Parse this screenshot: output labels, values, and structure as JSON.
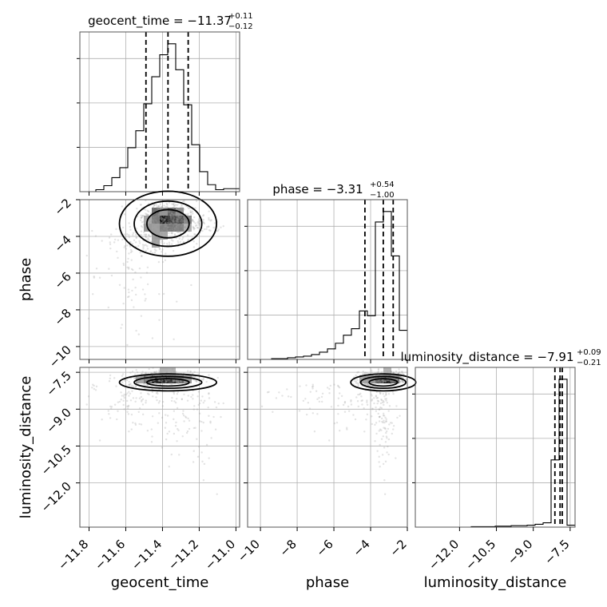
{
  "chart_data": {
    "type": "corner",
    "parameters": [
      {
        "key": "geocent_time",
        "label": "geocent_time",
        "title_prefix": "geocent_time = ",
        "median": "−11.37",
        "plus": "+0.11",
        "minus": "−0.12",
        "range": [
          -11.85,
          -10.98
        ],
        "ticks": [
          -11.8,
          -11.6,
          -11.4,
          -11.2,
          -11.0
        ],
        "tick_labels": [
          "−11.8",
          "−11.6",
          "−11.4",
          "−11.2",
          "−11.0"
        ],
        "quantiles": [
          -11.49,
          -11.37,
          -11.26
        ],
        "hist_edges_start": -11.85,
        "hist_bin_width": 0.0435,
        "hist_counts": [
          0,
          0,
          2,
          6,
          14,
          24,
          44,
          61,
          88,
          115,
          137,
          148,
          122,
          87,
          47,
          20,
          7,
          2,
          3,
          3
        ]
      },
      {
        "key": "phase",
        "label": "phase",
        "title_prefix": "phase = ",
        "median": "−3.31",
        "plus": "+0.54",
        "minus": "−1.00",
        "range": [
          -10.7,
          -2.0
        ],
        "ticks": [
          -10,
          -8,
          -6,
          -4,
          -2
        ],
        "tick_labels": [
          "−10",
          "−8",
          "−6",
          "−4",
          "−2"
        ],
        "quantiles": [
          -4.31,
          -3.31,
          -2.77
        ],
        "hist_edges_start": -10.7,
        "hist_bin_width": 0.435,
        "hist_counts": [
          0,
          0,
          0,
          1,
          1,
          2,
          3,
          4,
          6,
          9,
          13,
          20,
          30,
          38,
          60,
          54,
          170,
          183,
          128,
          36
        ]
      },
      {
        "key": "luminosity_distance",
        "label": "luminosity_distance",
        "title_prefix": "luminosity_distance = ",
        "median": "−7.91",
        "plus": "+0.09",
        "minus": "−0.21",
        "range": [
          -13.8,
          -7.3
        ],
        "ticks": [
          -12.0,
          -10.5,
          -9.0,
          -7.5
        ],
        "tick_labels": [
          "−12.0",
          "−10.5",
          "−9.0",
          "−7.5"
        ],
        "quantiles": [
          -8.12,
          -7.91,
          -7.82
        ],
        "hist_edges_start": -13.8,
        "hist_bin_width": 0.325,
        "hist_counts": [
          0,
          0,
          0,
          0,
          0,
          0,
          0,
          1,
          1,
          1,
          2,
          2,
          3,
          3,
          4,
          6,
          9,
          140,
          308,
          4
        ]
      }
    ]
  }
}
